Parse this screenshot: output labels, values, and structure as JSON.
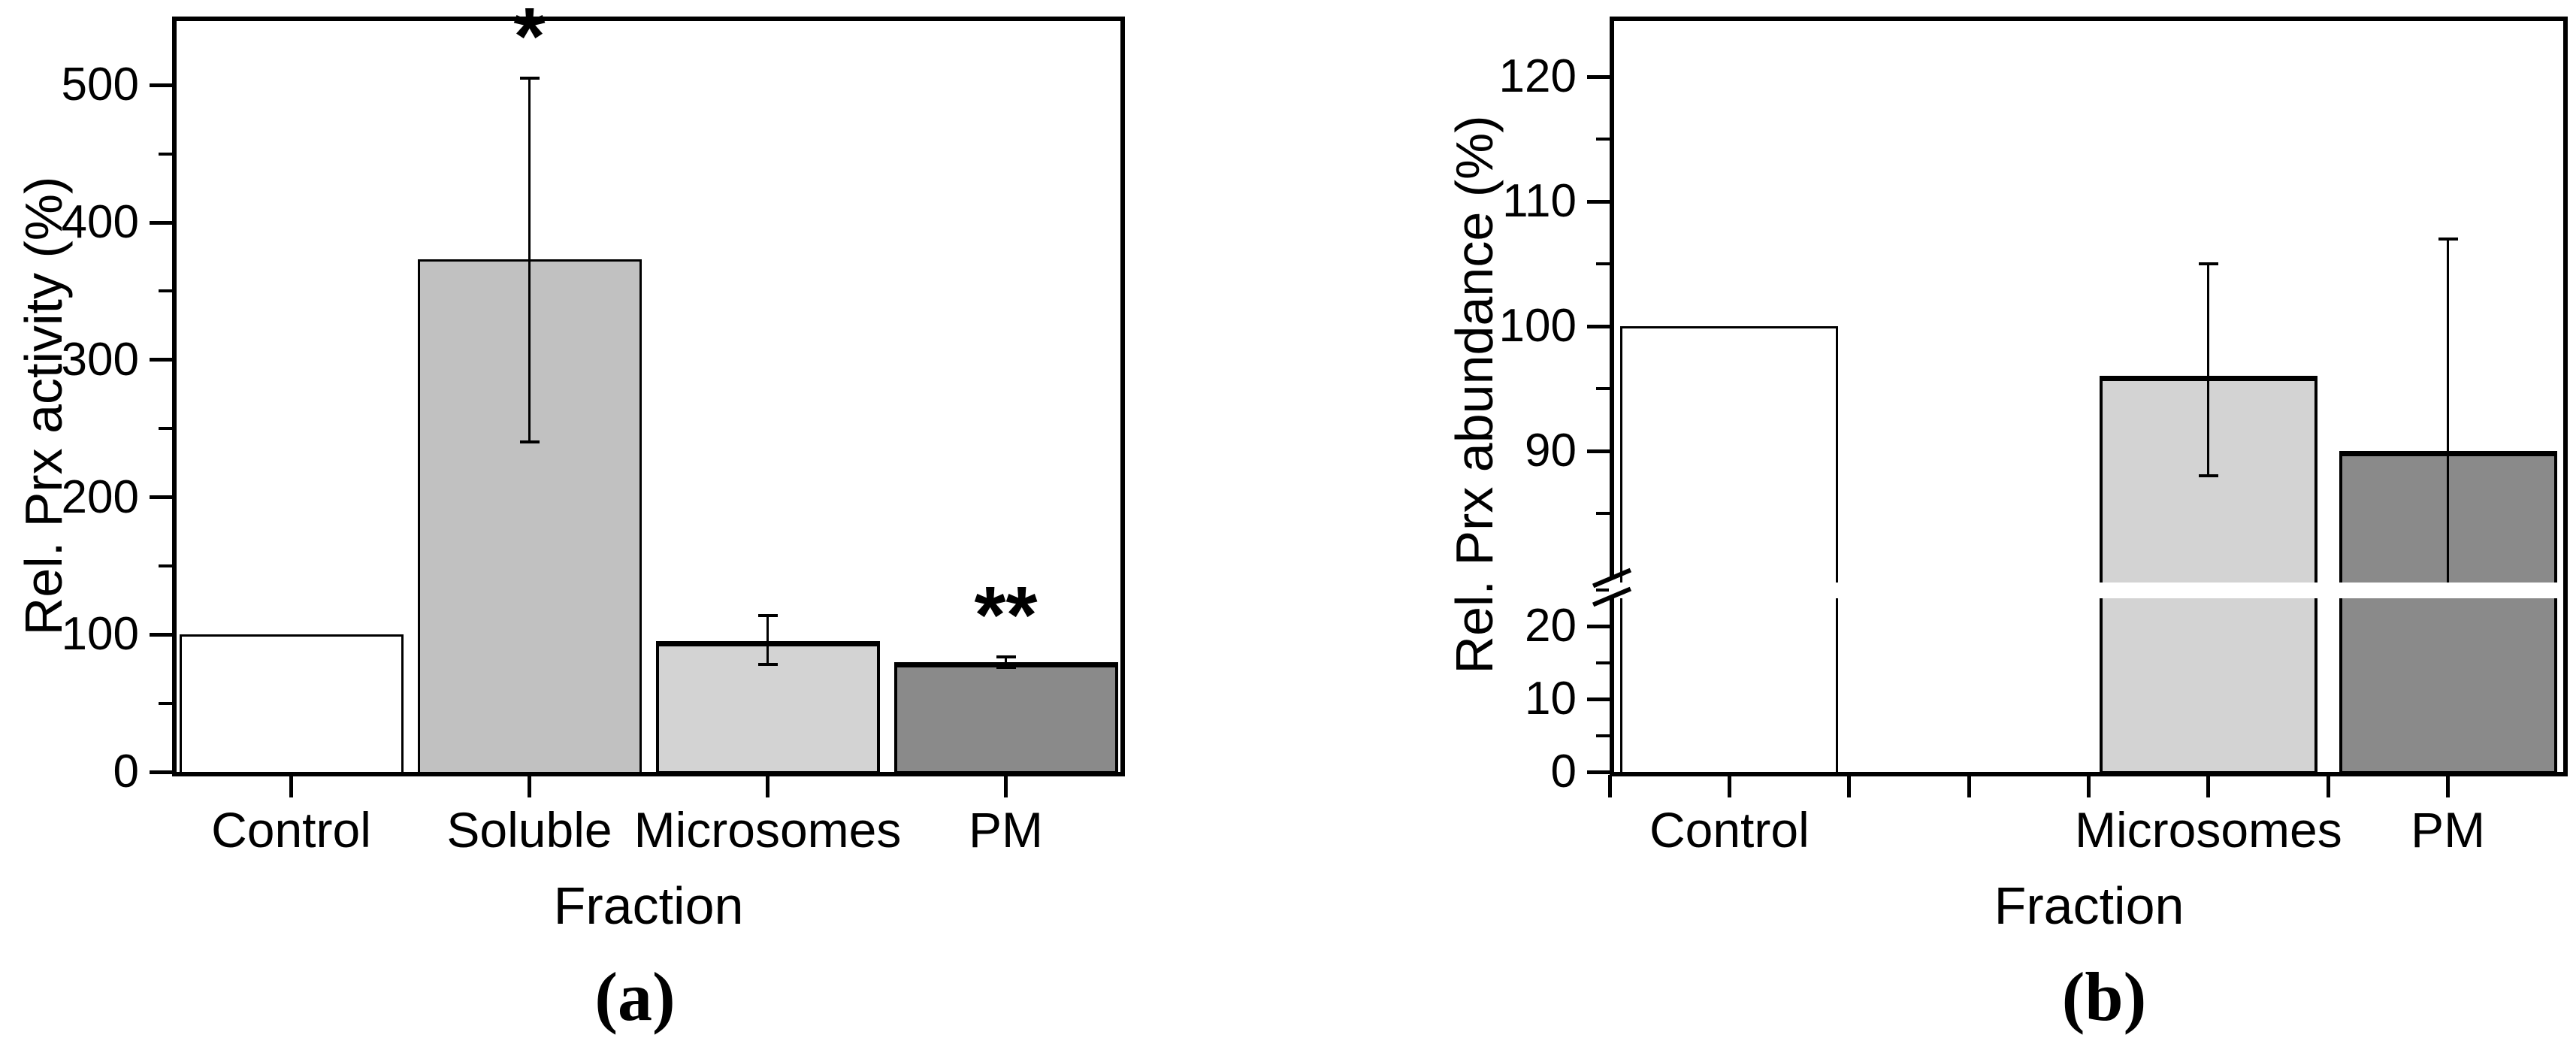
{
  "captions": {
    "a": "(a)",
    "b": "(b)"
  },
  "chart_data": [
    {
      "type": "bar",
      "panel": "a",
      "title": "",
      "xlabel": "Fraction",
      "ylabel": "Rel. Prx activity (%)",
      "categories": [
        "Control",
        "Soluble",
        "Microsomes",
        "PM"
      ],
      "values": [
        100,
        373,
        95,
        80
      ],
      "error_low": [
        null,
        240,
        78,
        76
      ],
      "error_high": [
        null,
        505,
        114,
        84
      ],
      "significance": [
        null,
        "*",
        null,
        "**"
      ],
      "bar_styles": [
        "plain",
        "solid",
        "hatch-light",
        "hatch-dark"
      ],
      "ylim": [
        0,
        550
      ],
      "yticks": [
        0,
        100,
        200,
        300,
        400,
        500
      ],
      "grid": false,
      "legend": false
    },
    {
      "type": "bar",
      "panel": "b",
      "title": "",
      "xlabel": "Fraction",
      "ylabel": "Rel. Prx abundance (%)",
      "categories": [
        "Control",
        "Microsomes",
        "PM"
      ],
      "values": [
        100,
        96,
        90
      ],
      "error_low": [
        null,
        88,
        73
      ],
      "error_high": [
        null,
        105,
        107
      ],
      "significance": [
        null,
        null,
        null
      ],
      "bar_styles": [
        "plain",
        "hatch-light",
        "hatch-dark"
      ],
      "axis_break": {
        "lower_range": [
          0,
          25
        ],
        "upper_range": [
          85,
          125
        ]
      },
      "yticks_lower": [
        0,
        10,
        20
      ],
      "yticks_upper": [
        90,
        100,
        110,
        120
      ],
      "grid": false,
      "legend": false
    }
  ],
  "colors": {
    "bar_plain": "#ffffff",
    "bar_solid_gray": "#c1c1c1",
    "bar_hatch_light": "#d3d3d3",
    "bar_hatch_dark": "#8a8a8a",
    "line": "#000000"
  }
}
